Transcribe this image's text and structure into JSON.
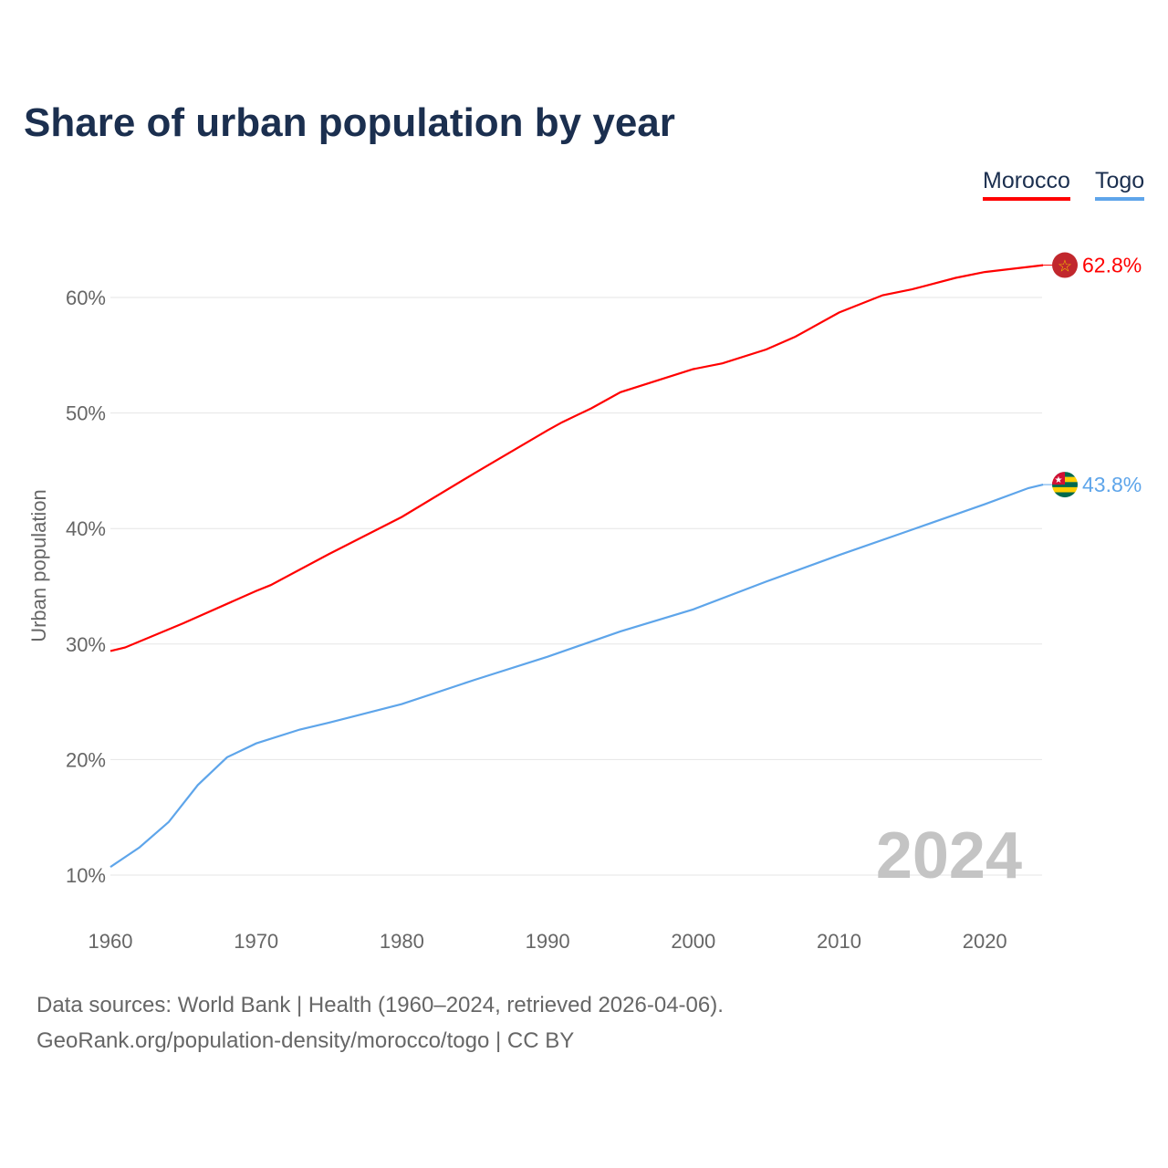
{
  "chart_data": {
    "type": "line",
    "title": "Share of urban population by year",
    "ylabel": "Urban population",
    "xlabel": "",
    "xlim": [
      1960,
      2024
    ],
    "ylim": [
      10,
      65
    ],
    "x_ticks": [
      1960,
      1970,
      1980,
      1990,
      2000,
      2010,
      2020
    ],
    "y_ticks": [
      10,
      20,
      30,
      40,
      50,
      60
    ],
    "y_tick_labels": [
      "10%",
      "20%",
      "30%",
      "40%",
      "50%",
      "60%"
    ],
    "x_tick_labels": [
      "1960",
      "1970",
      "1980",
      "1990",
      "2000",
      "2010",
      "2020"
    ],
    "grid": true,
    "legend_placement": "top-right",
    "year_watermark": "2024",
    "series": [
      {
        "name": "Morocco",
        "color": "#ff0000",
        "end_label": "62.8%",
        "x": [
          1960,
          1961,
          1965,
          1970,
          1971,
          1975,
          1980,
          1985,
          1990,
          1991,
          1993,
          1995,
          1998,
          2000,
          2002,
          2005,
          2007,
          2010,
          2013,
          2015,
          2018,
          2020,
          2024
        ],
        "values": [
          29.4,
          29.7,
          31.8,
          34.6,
          35.1,
          37.8,
          41.0,
          44.8,
          48.5,
          49.2,
          50.4,
          51.8,
          53.0,
          53.8,
          54.3,
          55.5,
          56.6,
          58.7,
          60.2,
          60.7,
          61.7,
          62.2,
          62.8
        ]
      },
      {
        "name": "Togo",
        "color": "#5ea5ea",
        "end_label": "43.8%",
        "x": [
          1960,
          1962,
          1964,
          1966,
          1968,
          1970,
          1973,
          1975,
          1980,
          1985,
          1990,
          1995,
          2000,
          2005,
          2010,
          2015,
          2020,
          2023,
          2024
        ],
        "values": [
          10.7,
          12.4,
          14.6,
          17.8,
          20.2,
          21.4,
          22.6,
          23.2,
          24.8,
          26.9,
          28.9,
          31.1,
          33.0,
          35.4,
          37.7,
          39.9,
          42.1,
          43.5,
          43.8
        ]
      }
    ]
  },
  "footer": {
    "line1": "Data sources: World Bank | Health (1960–2024, retrieved 2026-04-06).",
    "line2": "GeoRank.org/population-density/morocco/togo | CC BY"
  }
}
